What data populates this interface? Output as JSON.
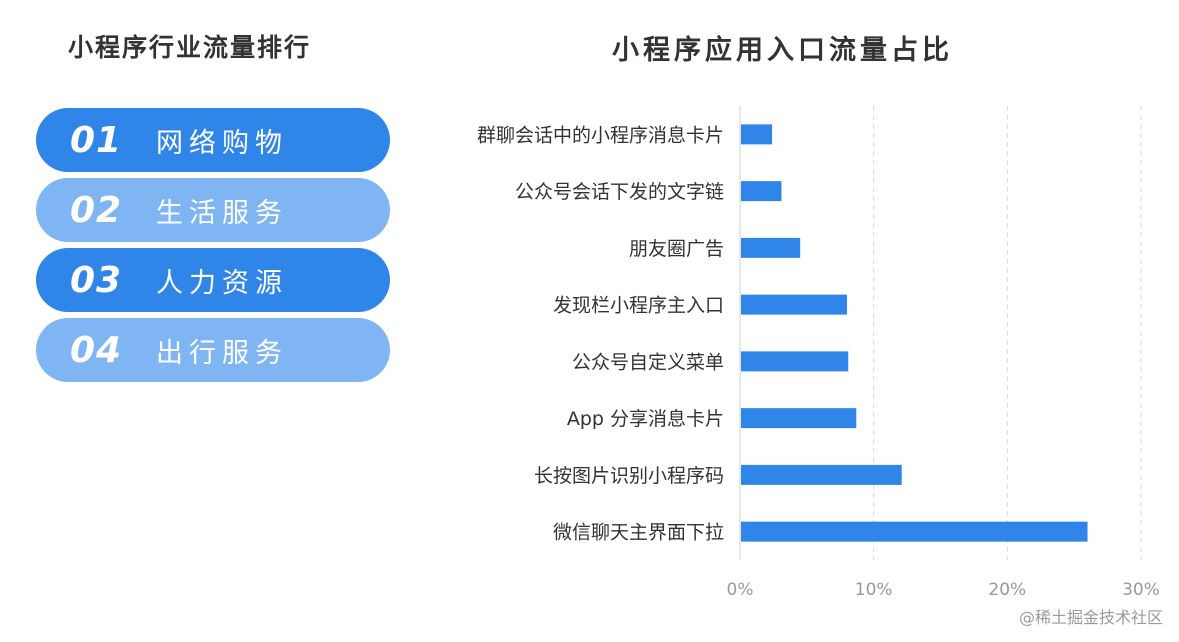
{
  "ranking": {
    "title": "小程序行业流量排行",
    "colors": {
      "dark": "#2f86e8",
      "light": "#7fb5f2"
    },
    "items": [
      {
        "num": "01",
        "label": "网络购物",
        "style": "dark"
      },
      {
        "num": "02",
        "label": "生活服务",
        "style": "light"
      },
      {
        "num": "03",
        "label": "人力资源",
        "style": "dark"
      },
      {
        "num": "04",
        "label": "出行服务",
        "style": "light"
      }
    ]
  },
  "chart_data": {
    "type": "bar",
    "orientation": "horizontal",
    "title": "小程序应用入口流量占比",
    "categories": [
      "群聊会话中的小程序消息卡片",
      "公众号会话下发的文字链",
      "朋友圈广告",
      "发现栏小程序主入口",
      "公众号自定义菜单",
      "App 分享消息卡片",
      "长按图片识别小程序码",
      "微信聊天主界面下拉"
    ],
    "values": [
      2.4,
      3.1,
      4.5,
      8.0,
      8.1,
      8.7,
      12.1,
      26.0
    ],
    "unit": "%",
    "xlim": [
      0,
      30
    ],
    "xticks": [
      0,
      10,
      20,
      30
    ],
    "xtick_labels": [
      "0%",
      "10%",
      "20%",
      "30%"
    ],
    "grid": true,
    "bar_color": "#2f86e8"
  },
  "watermark": "@稀土掘金技术社区"
}
